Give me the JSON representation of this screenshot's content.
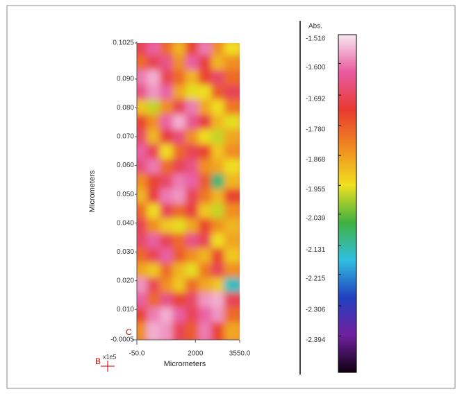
{
  "chart_data": {
    "type": "heatmap",
    "xlabel": "Micrometers",
    "ylabel": "Micrometers",
    "xlim": [
      -50,
      3550
    ],
    "xticks": [
      {
        "value": -50,
        "label": "-50.0"
      },
      2000,
      {
        "value": 3550,
        "label": "3550.0"
      }
    ],
    "ylim": [
      -0.0005,
      0.1025
    ],
    "yticks": [
      -0.0005,
      {
        "value": 0.01,
        "label": "0.010"
      },
      {
        "value": 0.02,
        "label": "0.020"
      },
      {
        "value": 0.03,
        "label": "0.030"
      },
      {
        "value": 0.04,
        "label": "0.040"
      },
      {
        "value": 0.05,
        "label": "0.050"
      },
      {
        "value": 0.06,
        "label": "0.060"
      },
      {
        "value": 0.07,
        "label": "0.070"
      },
      {
        "value": 0.08,
        "label": "0.080"
      },
      {
        "value": 0.09,
        "label": "0.090"
      },
      0.1025
    ],
    "colorbar_label": "Abs.",
    "clim": [
      -2.5,
      -1.516
    ],
    "cticks": [
      -1.516,
      {
        "value": -1.6,
        "label": "-1.600"
      },
      -1.692,
      {
        "value": -1.78,
        "label": "-1.780"
      },
      -1.868,
      -1.955,
      -2.039,
      -2.131,
      -2.215,
      -2.306,
      -2.394
    ],
    "colormap": [
      "#100010",
      "#7020a0",
      "#2040c0",
      "#30c0e0",
      "#40b040",
      "#f0e020",
      "#f08a20",
      "#e83a30",
      "#e85aa0",
      "#f8e8f0"
    ],
    "annotations": [
      "C",
      "B",
      "x1e5"
    ],
    "z": [
      [
        -1.7,
        -1.62,
        -1.8,
        -1.9,
        -1.75,
        -1.6,
        -1.85,
        -1.95
      ],
      [
        -1.8,
        -1.7,
        -1.65,
        -1.85,
        -1.62,
        -1.72,
        -1.9,
        -1.85
      ],
      [
        -1.6,
        -1.56,
        -1.7,
        -1.8,
        -1.9,
        -1.75,
        -1.68,
        -1.8
      ],
      [
        -1.65,
        -1.58,
        -1.62,
        -1.88,
        -1.96,
        -1.95,
        -1.78,
        -1.7
      ],
      [
        -1.92,
        -1.98,
        -1.85,
        -1.7,
        -1.6,
        -1.88,
        -1.95,
        -1.82
      ],
      [
        -1.75,
        -1.85,
        -1.62,
        -1.56,
        -1.64,
        -1.72,
        -1.9,
        -1.96
      ],
      [
        -1.68,
        -1.9,
        -1.72,
        -1.66,
        -1.85,
        -1.95,
        -1.98,
        -1.88
      ],
      [
        -1.62,
        -1.7,
        -1.95,
        -1.8,
        -1.7,
        -1.75,
        -1.92,
        -1.85
      ],
      [
        -1.66,
        -1.6,
        -1.8,
        -1.7,
        -1.65,
        -1.85,
        -1.88,
        -1.95
      ],
      [
        -1.85,
        -1.75,
        -1.68,
        -1.6,
        -1.62,
        -1.78,
        -2.1,
        -1.9
      ],
      [
        -1.9,
        -1.72,
        -1.6,
        -1.58,
        -1.7,
        -1.82,
        -1.9,
        -1.75
      ],
      [
        -1.8,
        -1.95,
        -1.7,
        -1.8,
        -1.72,
        -1.92,
        -1.98,
        -1.85
      ],
      [
        -1.7,
        -1.85,
        -1.92,
        -1.96,
        -1.88,
        -1.75,
        -1.85,
        -1.9
      ],
      [
        -1.68,
        -1.62,
        -1.7,
        -1.8,
        -1.65,
        -1.7,
        -1.95,
        -1.88
      ],
      [
        -1.8,
        -1.7,
        -1.62,
        -1.78,
        -1.85,
        -1.9,
        -1.75,
        -1.92
      ],
      [
        -1.88,
        -1.92,
        -1.8,
        -1.9,
        -1.96,
        -1.82,
        -1.7,
        -1.85
      ],
      [
        -1.58,
        -1.7,
        -1.85,
        -1.92,
        -1.8,
        -1.88,
        -1.92,
        -2.15
      ],
      [
        -1.62,
        -1.8,
        -1.65,
        -1.75,
        -1.68,
        -1.58,
        -1.56,
        -1.7
      ],
      [
        -1.75,
        -1.6,
        -1.56,
        -1.62,
        -1.7,
        -1.62,
        -1.58,
        -1.8
      ],
      [
        -1.85,
        -1.56,
        -1.58,
        -1.7,
        -1.78,
        -1.6,
        -1.75,
        -1.88
      ]
    ]
  }
}
